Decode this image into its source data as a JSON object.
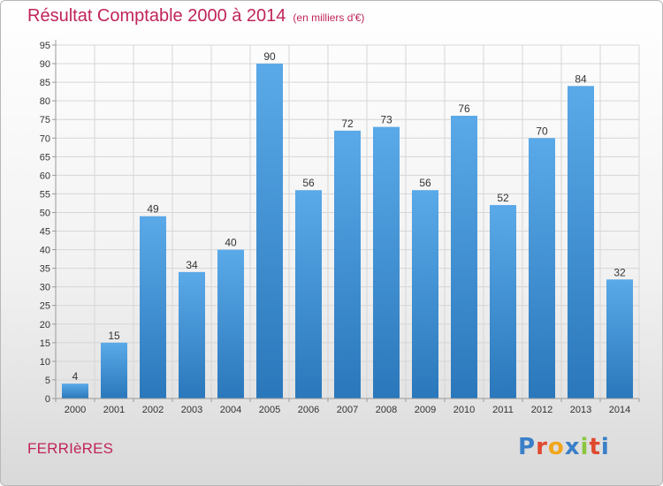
{
  "header": {
    "title": "Résultat Comptable 2000 à 2014",
    "subtitle": "(en milliers d'€)"
  },
  "footer": {
    "commune": "FERRIèRES",
    "logo_letters": [
      {
        "ch": "P",
        "color": "#3a7fc8"
      },
      {
        "ch": "r",
        "color": "#e0492e"
      },
      {
        "ch": "o",
        "color": "#f2a51a"
      },
      {
        "ch": "x",
        "color": "#3a7fc8"
      },
      {
        "ch": "i",
        "color": "#8cc63f"
      },
      {
        "ch": "t",
        "color": "#e0492e"
      },
      {
        "ch": "i",
        "color": "#3a7fc8"
      }
    ]
  },
  "colors": {
    "bar_top": "#5aa9e8",
    "bar_bottom": "#2a78bb",
    "grid": "#d6d6d6",
    "title": "#c0245a",
    "axis_text": "#333333"
  },
  "chart_data": {
    "type": "bar",
    "title": "Résultat Comptable 2000 à 2014",
    "xlabel": "",
    "ylabel": "",
    "ylim": [
      0,
      95
    ],
    "ytick_step": 5,
    "grid": true,
    "categories": [
      "2000",
      "2001",
      "2002",
      "2003",
      "2004",
      "2005",
      "2006",
      "2007",
      "2008",
      "2009",
      "2010",
      "2011",
      "2012",
      "2013",
      "2014"
    ],
    "values": [
      4,
      15,
      49,
      34,
      40,
      90,
      56,
      72,
      73,
      56,
      76,
      52,
      70,
      84,
      32
    ]
  }
}
